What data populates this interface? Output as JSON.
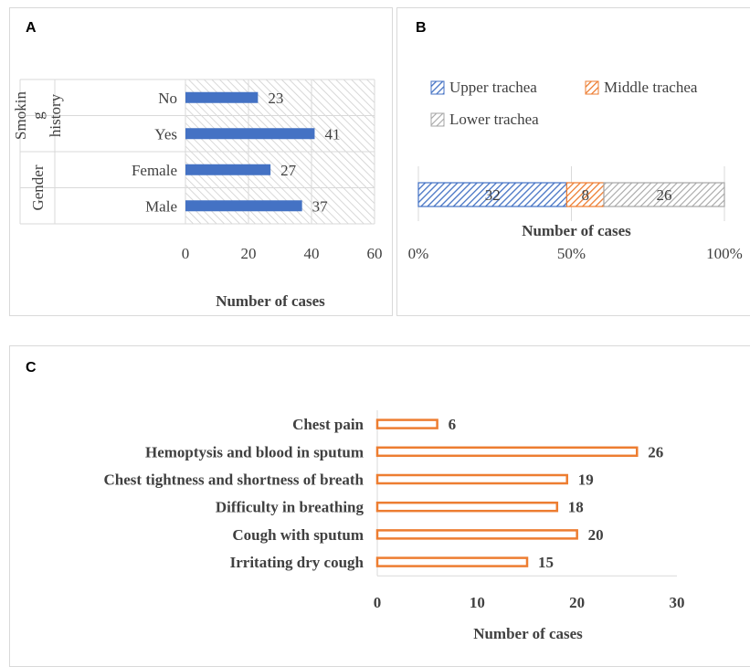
{
  "panels": {
    "a": "A",
    "b": "B",
    "c": "C"
  },
  "colors": {
    "blue": "#4472c4",
    "orange": "#ed7d31",
    "grid": "#d9d9d9",
    "hatch_gray": "#bfbfbf",
    "text": "#404040"
  },
  "chart_data": [
    {
      "type": "bar",
      "orientation": "horizontal",
      "groups": [
        {
          "name": "Smoking history",
          "display": [
            "Smokin",
            "g",
            "history"
          ],
          "categories": [
            "No",
            "Yes"
          ],
          "values": [
            23,
            41
          ]
        },
        {
          "name": "Gender",
          "display": [
            "Gender"
          ],
          "categories": [
            "Female",
            "Male"
          ],
          "values": [
            27,
            37
          ]
        }
      ],
      "xticks": [
        0,
        20,
        40,
        60
      ],
      "xlim": [
        0,
        60
      ],
      "xlabel": "Number of cases",
      "grid": true,
      "series_color": "#4472c4"
    },
    {
      "type": "bar",
      "stacked": "percent",
      "orientation": "horizontal",
      "series": [
        {
          "name": "Upper trachea",
          "values": [
            32
          ],
          "color": "#4472c4"
        },
        {
          "name": "Middle trachea",
          "values": [
            8
          ],
          "color": "#ed7d31"
        },
        {
          "name": "Lower trachea",
          "values": [
            26
          ],
          "color": "#a6a6a6"
        }
      ],
      "xticks": [
        "0%",
        "50%",
        "100%"
      ],
      "xlim": [
        0,
        100
      ],
      "xlabel": "Number of cases",
      "legend": "top"
    },
    {
      "type": "bar",
      "orientation": "horizontal",
      "categories": [
        "Chest pain",
        "Hemoptysis and blood in sputum",
        "Chest tightness and shortness of breath",
        "Difficulty in breathing",
        "Cough with sputum",
        "Irritating dry cough"
      ],
      "values": [
        6,
        26,
        19,
        18,
        20,
        15
      ],
      "xticks": [
        0,
        10,
        20,
        30
      ],
      "xlim": [
        0,
        30
      ],
      "xlabel": "Number of cases",
      "series_color": "#ed7d31",
      "grid": false
    }
  ]
}
